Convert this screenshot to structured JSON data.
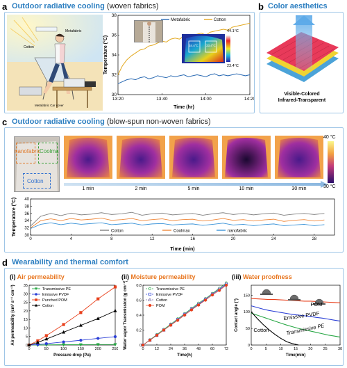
{
  "panel_a": {
    "letter": "a",
    "title": "Outdoor radiative cooling",
    "subtitle": "(woven fabrics)",
    "illustration_labels": {
      "cotton": "Cotton",
      "metafabric": "Metafabric",
      "car_cover": "Metafabric Car cover"
    },
    "thermal_max": "44.1°C",
    "thermal_min": "23.4°C",
    "spot_left": "34.4°C",
    "spot_right": "33.4°C"
  },
  "panel_b": {
    "letter": "b",
    "title": "Color aesthetics",
    "caption_line1": "Visible-Colored",
    "caption_line2": "Infrared-Transparent"
  },
  "panel_c": {
    "letter": "c",
    "title": "Outdoor radiative cooling",
    "subtitle": "(blow-spun non-woven fabrics)",
    "photo_labels": {
      "nano": "nanofabric",
      "coolmax": "Coolmax",
      "cotton": "Cotton"
    },
    "thermal_times": [
      "1 min",
      "2 min",
      "5 min",
      "10 min",
      "30 min"
    ],
    "colorbar_max": "40 °C",
    "colorbar_min": "30 °C"
  },
  "panel_d": {
    "letter": "d",
    "title": "Wearability and thermal comfort",
    "sub_i": {
      "num": "(i)",
      "title": "Air permeability"
    },
    "sub_ii": {
      "num": "(ii)",
      "title": "Moisture permeability"
    },
    "sub_iii": {
      "num": "(iii)",
      "title": "Water proofness"
    }
  },
  "chart_data": [
    {
      "id": "a-temperature",
      "type": "line",
      "xlabel": "Time (hr)",
      "ylabel": "Temperature (°C)",
      "xticks": [
        "13:20",
        "13:40",
        "14:00",
        "14:20"
      ],
      "xlim": [
        0,
        60
      ],
      "ylim": [
        30,
        38
      ],
      "yticks": [
        30,
        32,
        34,
        36,
        38
      ],
      "legend": "top",
      "series": [
        {
          "name": "Metafabric",
          "color": "#2a6ab3",
          "x": [
            0,
            2,
            4,
            6,
            8,
            10,
            12,
            14,
            16,
            18,
            20,
            22,
            24,
            26,
            28,
            30,
            32,
            34,
            36,
            38,
            40,
            42,
            44,
            46,
            48,
            50,
            52,
            54,
            56,
            58,
            60
          ],
          "y": [
            31.1,
            31.3,
            31.5,
            31.6,
            31.5,
            31.7,
            31.8,
            31.6,
            31.7,
            31.9,
            31.8,
            31.7,
            31.9,
            31.8,
            31.9,
            32.0,
            31.8,
            31.9,
            32.0,
            31.9,
            31.8,
            32.0,
            32.1,
            31.9,
            32.0,
            31.9,
            32.0,
            32.1,
            32.0,
            31.9,
            32.0
          ]
        },
        {
          "name": "Cotton",
          "color": "#e3a921",
          "x": [
            0,
            2,
            4,
            6,
            8,
            10,
            12,
            14,
            16,
            18,
            20,
            22,
            24,
            26,
            28,
            30,
            32,
            34,
            36,
            38,
            40,
            42,
            44,
            46,
            48,
            50,
            52,
            54,
            56,
            58,
            60
          ],
          "y": [
            32.0,
            32.9,
            33.5,
            33.9,
            34.2,
            34.5,
            34.6,
            34.9,
            35.0,
            35.2,
            35.4,
            35.3,
            35.6,
            35.7,
            35.6,
            35.9,
            35.8,
            36.0,
            36.1,
            36.2,
            36.0,
            36.3,
            36.4,
            36.5,
            36.6,
            36.5,
            36.8,
            36.9,
            37.0,
            37.1,
            37.2
          ]
        }
      ]
    },
    {
      "id": "c-temperature",
      "type": "line",
      "xlabel": "Time (min)",
      "ylabel": "Temperature (°C)",
      "xlim": [
        0,
        30
      ],
      "xticks": [
        0,
        4,
        8,
        12,
        16,
        20,
        24,
        28
      ],
      "ylim": [
        30,
        40
      ],
      "yticks": [
        30,
        32,
        34,
        36,
        38,
        40
      ],
      "legend": "bottom",
      "series": [
        {
          "name": "Cotton",
          "color": "#808080",
          "x": [
            0,
            1,
            2,
            3,
            4,
            5,
            6,
            7,
            8,
            9,
            10,
            11,
            12,
            13,
            14,
            15,
            16,
            17,
            18,
            19,
            20,
            21,
            22,
            23,
            24,
            25,
            26,
            27,
            28,
            29
          ],
          "y": [
            32.5,
            35.2,
            36.0,
            35.4,
            36.1,
            35.6,
            35.8,
            36.2,
            35.7,
            35.9,
            36.3,
            35.5,
            35.9,
            36.1,
            35.6,
            35.8,
            36.0,
            35.5,
            35.9,
            36.2,
            35.7,
            36.0,
            35.6,
            35.9,
            36.1,
            35.5,
            35.8,
            36.0,
            35.7,
            36.0
          ]
        },
        {
          "name": "Coolmax",
          "color": "#f0883a",
          "x": [
            0,
            1,
            2,
            3,
            4,
            5,
            6,
            7,
            8,
            9,
            10,
            11,
            12,
            13,
            14,
            15,
            16,
            17,
            18,
            19,
            20,
            21,
            22,
            23,
            24,
            25,
            26,
            27,
            28,
            29
          ],
          "y": [
            32.0,
            34.0,
            34.5,
            34.0,
            34.6,
            34.2,
            34.4,
            34.7,
            34.1,
            34.3,
            34.6,
            34.0,
            34.3,
            34.5,
            34.0,
            34.3,
            34.4,
            33.9,
            34.2,
            34.6,
            34.1,
            34.3,
            33.9,
            34.2,
            34.4,
            33.8,
            34.1,
            34.3,
            33.9,
            34.2
          ]
        },
        {
          "name": "nanofabric",
          "color": "#3a93d8",
          "x": [
            0,
            1,
            2,
            3,
            4,
            5,
            6,
            7,
            8,
            9,
            10,
            11,
            12,
            13,
            14,
            15,
            16,
            17,
            18,
            19,
            20,
            21,
            22,
            23,
            24,
            25,
            26,
            27,
            28,
            29
          ],
          "y": [
            31.8,
            33.0,
            33.4,
            32.9,
            33.3,
            33.0,
            33.2,
            33.4,
            32.9,
            33.1,
            33.3,
            32.8,
            33.1,
            33.2,
            32.8,
            33.0,
            33.1,
            32.7,
            33.0,
            33.3,
            32.8,
            33.0,
            32.6,
            32.9,
            33.1,
            32.6,
            32.8,
            33.0,
            32.6,
            32.9
          ]
        }
      ]
    },
    {
      "id": "d-i-air-permeability",
      "type": "line",
      "xlabel": "Pressure drop (Pa)",
      "ylabel": "Air permeability (cm³ s⁻¹ cm⁻²)",
      "xlim": [
        0,
        250
      ],
      "xticks": [
        0,
        50,
        100,
        150,
        200,
        250
      ],
      "ylim": [
        0,
        35
      ],
      "yticks": [
        0,
        5,
        10,
        15,
        20,
        25,
        30,
        35
      ],
      "legend": "top-left",
      "series": [
        {
          "name": "Transmissive PE",
          "color": "#28a745",
          "marker": "triangle-down",
          "x": [
            0,
            25,
            50,
            100,
            150,
            200,
            250
          ],
          "y": [
            0,
            0,
            0.1,
            0.2,
            0.2,
            0.3,
            0.3
          ]
        },
        {
          "name": "Emissive PVDF",
          "color": "#2b3fd6",
          "marker": "circle",
          "x": [
            0,
            25,
            50,
            100,
            150,
            200,
            250
          ],
          "y": [
            0,
            0.3,
            0.8,
            1.8,
            2.8,
            3.9,
            4.9
          ]
        },
        {
          "name": "Punched POM",
          "color": "#e8401c",
          "marker": "square",
          "x": [
            0,
            25,
            50,
            100,
            150,
            200,
            250
          ],
          "y": [
            0,
            2.5,
            5.5,
            12,
            19,
            27,
            34
          ]
        },
        {
          "name": "Cotton",
          "color": "#000000",
          "marker": "triangle-up",
          "x": [
            0,
            25,
            50,
            100,
            150,
            200,
            250
          ],
          "y": [
            0,
            1.5,
            3.5,
            7.5,
            11.5,
            15.5,
            20
          ]
        }
      ]
    },
    {
      "id": "d-ii-moisture-permeability",
      "type": "line",
      "xlabel": "Time(h)",
      "ylabel": "Water vapor Transmission (g cm⁻²)",
      "xlim": [
        0,
        72
      ],
      "xticks": [
        0,
        12,
        24,
        36,
        48,
        60,
        72
      ],
      "ylim": [
        0,
        0.8
      ],
      "yticks": [
        0,
        0.2,
        0.4,
        0.6,
        0.8
      ],
      "legend": "top-left",
      "series": [
        {
          "name": "Transmissive PE",
          "color": "#28a745",
          "marker": "circle-open",
          "x": [
            0,
            6,
            12,
            18,
            24,
            30,
            36,
            42,
            48,
            54,
            60,
            66,
            72
          ],
          "y": [
            0,
            0.07,
            0.14,
            0.21,
            0.28,
            0.35,
            0.42,
            0.49,
            0.56,
            0.62,
            0.69,
            0.76,
            0.83
          ]
        },
        {
          "name": "Emissive PVDF",
          "color": "#2b3fd6",
          "marker": "square-open",
          "x": [
            0,
            6,
            12,
            18,
            24,
            30,
            36,
            42,
            48,
            54,
            60,
            66,
            72
          ],
          "y": [
            0,
            0.065,
            0.13,
            0.2,
            0.27,
            0.34,
            0.41,
            0.48,
            0.54,
            0.61,
            0.68,
            0.74,
            0.81
          ]
        },
        {
          "name": "Cotton",
          "color": "#7a6aa8",
          "marker": "triangle-open",
          "x": [
            0,
            6,
            12,
            18,
            24,
            30,
            36,
            42,
            48,
            54,
            60,
            66,
            72
          ],
          "y": [
            0,
            0.066,
            0.135,
            0.2,
            0.27,
            0.34,
            0.41,
            0.48,
            0.55,
            0.615,
            0.68,
            0.75,
            0.82
          ]
        },
        {
          "name": "POM",
          "color": "#e8401c",
          "marker": "circle",
          "x": [
            0,
            6,
            12,
            18,
            24,
            30,
            36,
            42,
            48,
            54,
            60,
            66,
            72
          ],
          "y": [
            0,
            0.065,
            0.13,
            0.2,
            0.265,
            0.33,
            0.4,
            0.47,
            0.535,
            0.6,
            0.67,
            0.73,
            0.8
          ]
        }
      ]
    },
    {
      "id": "d-iii-water-proofness",
      "type": "line",
      "xlabel": "Time(min)",
      "ylabel": "Contact angle (°)",
      "xlim": [
        0,
        30
      ],
      "xticks": [
        0,
        5,
        10,
        15,
        20,
        25,
        30
      ],
      "ylim": [
        0,
        180
      ],
      "yticks": [
        0,
        50,
        100,
        150
      ],
      "legend": "inline",
      "series": [
        {
          "name": "POM",
          "color": "#e8401c",
          "x": [
            0,
            2,
            4,
            6,
            8,
            10,
            12,
            14,
            16,
            18,
            20,
            22,
            24,
            26,
            28,
            30
          ],
          "y": [
            140,
            139,
            138,
            137,
            137,
            136,
            135,
            134,
            133,
            132,
            132,
            131,
            130,
            129,
            128,
            127
          ]
        },
        {
          "name": "Emissive PVDF",
          "color": "#2b3fd6",
          "x": [
            0,
            2,
            4,
            6,
            8,
            10,
            12,
            14,
            16,
            18,
            20,
            22,
            24,
            26,
            28,
            30
          ],
          "y": [
            118,
            113,
            108,
            104,
            101,
            98,
            95,
            92,
            90,
            88,
            86,
            83,
            81,
            78,
            75,
            72
          ]
        },
        {
          "name": "Transmissive PE",
          "color": "#28a745",
          "x": [
            0,
            2,
            4,
            6,
            8,
            10,
            12,
            14,
            16,
            18,
            20,
            22,
            24,
            26,
            28,
            30
          ],
          "y": [
            96,
            90,
            84,
            78,
            72,
            66,
            60,
            55,
            50,
            46,
            42,
            38,
            34,
            30,
            27,
            24
          ]
        },
        {
          "name": "Cotton",
          "color": "#000000",
          "x": [
            0,
            2,
            4,
            6,
            8,
            10,
            12,
            14,
            16
          ],
          "y": [
            100,
            80,
            62,
            46,
            32,
            20,
            10,
            4,
            0
          ]
        }
      ]
    }
  ]
}
